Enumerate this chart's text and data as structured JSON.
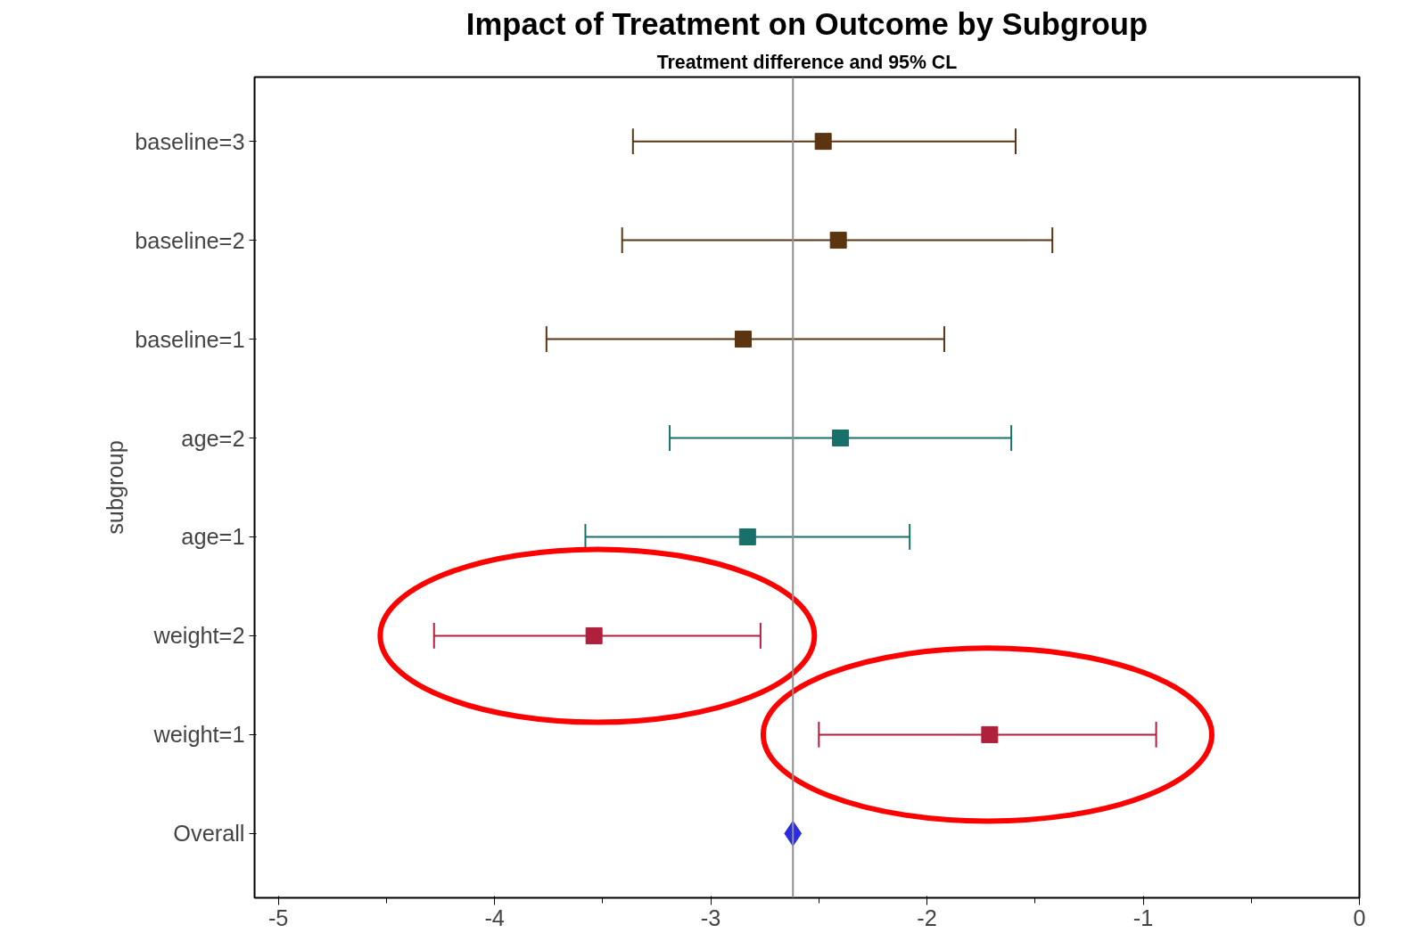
{
  "chart_data": {
    "type": "scatter",
    "orientation": "horizontal",
    "title": "Impact of Treatment on Outcome by Subgroup",
    "subtitle": "Treatment difference and 95% CL",
    "ylabel": "subgroup",
    "categories": [
      "baseline=3",
      "baseline=2",
      "baseline=1",
      "age=2",
      "age=1",
      "weight=2",
      "weight=1",
      "Overall"
    ],
    "series": [
      {
        "color": "#5a3510",
        "values": [
          -2.48,
          -2.41,
          -2.85,
          null,
          null,
          null,
          null,
          null
        ],
        "errors": [
          [
            -3.36,
            -1.59
          ],
          [
            -3.41,
            -1.42
          ],
          [
            -3.76,
            -1.92
          ],
          null,
          null,
          null,
          null,
          null
        ]
      },
      {
        "color": "#17706a",
        "values": [
          null,
          null,
          null,
          -2.4,
          -2.83,
          null,
          null,
          null
        ],
        "errors": [
          null,
          null,
          null,
          [
            -3.19,
            -1.61
          ],
          [
            -3.58,
            -2.08
          ],
          null,
          null,
          null
        ]
      },
      {
        "color": "#b01f3c",
        "values": [
          null,
          null,
          null,
          null,
          null,
          -3.54,
          -1.71,
          null
        ],
        "errors": [
          null,
          null,
          null,
          null,
          null,
          [
            -4.28,
            -2.77
          ],
          [
            -2.5,
            -0.94
          ],
          null
        ]
      },
      {
        "color": "#2b2be0",
        "marker": "diamond",
        "values": [
          null,
          null,
          null,
          null,
          null,
          null,
          null,
          -2.62
        ]
      }
    ],
    "marker": "square",
    "xlim": [
      -5.11,
      0
    ],
    "xticks": [
      -5,
      {
        "value": -4.5,
        "label": null
      },
      -4,
      {
        "value": -3.5,
        "label": null
      },
      -3,
      {
        "value": -2.5,
        "label": null
      },
      -2,
      {
        "value": -1.5,
        "label": null
      },
      -1,
      {
        "value": -0.5,
        "label": null
      },
      0
    ],
    "ref_lines": [
      {
        "axis": "x",
        "value": -2.62,
        "label": null,
        "color": "#909090"
      }
    ],
    "grid": false
  }
}
